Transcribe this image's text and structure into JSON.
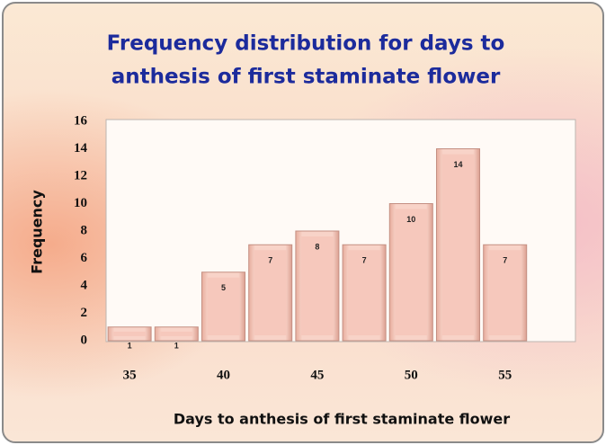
{
  "chart_data": {
    "type": "bar",
    "title": [
      "Frequency distribution for days to",
      "anthesis of first staminate flower"
    ],
    "x_label": "Days to anthesis of first staminate flower",
    "y_label": "Frequency",
    "x": [
      35,
      37.5,
      40,
      42.5,
      45,
      47.5,
      50,
      52.5,
      55
    ],
    "values": [
      1,
      1,
      5,
      7,
      8,
      7,
      10,
      14,
      7
    ],
    "color": "#f6c8bc",
    "xlim": [
      33.75,
      58.75
    ],
    "xticks": [
      35,
      40,
      45,
      50,
      55
    ],
    "ylim": [
      0,
      16
    ],
    "yticks": [
      0,
      2,
      4,
      6,
      8,
      10,
      12,
      14,
      16
    ],
    "grid": false
  }
}
